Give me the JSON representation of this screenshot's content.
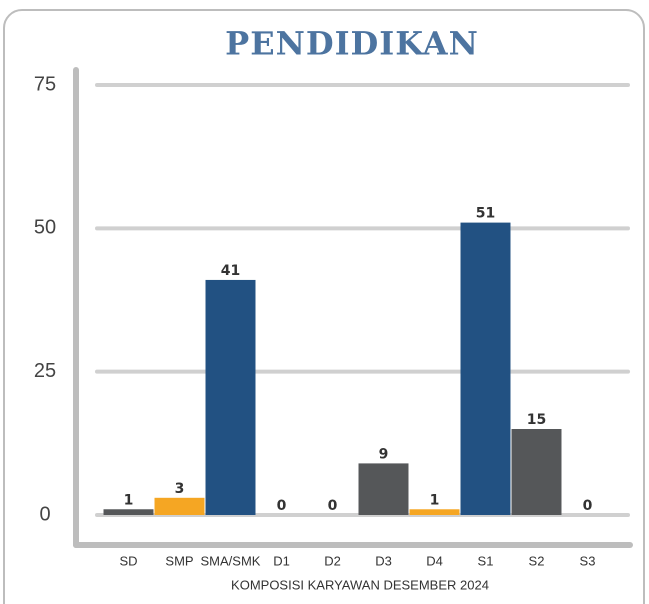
{
  "chart_data": {
    "type": "bar",
    "title": "PENDIDIKAN",
    "x_label": "KOMPOSISI KARYAWAN DESEMBER 2024",
    "categories": [
      "SD",
      "SMP",
      "SMA/SMK",
      "D1",
      "D2",
      "D3",
      "D4",
      "S1",
      "S2",
      "S3"
    ],
    "values": [
      1,
      3,
      41,
      0,
      0,
      9,
      1,
      51,
      15,
      0
    ],
    "colors": [
      "#555759",
      "#f5a623",
      "#225182",
      "#555759",
      "#555759",
      "#555759",
      "#f5a623",
      "#225182",
      "#555759",
      "#555759"
    ],
    "ylim": [
      0,
      75
    ],
    "yticks": [
      0,
      25,
      50,
      75
    ],
    "grid": true
  }
}
